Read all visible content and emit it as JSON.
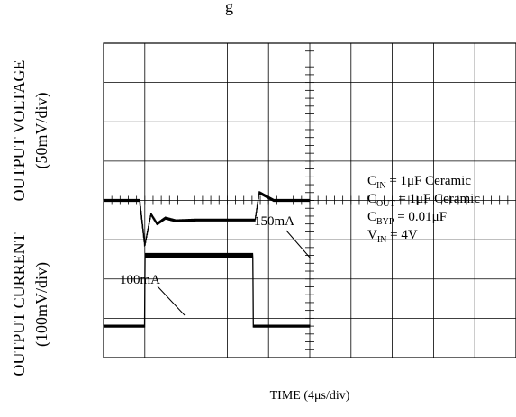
{
  "chart_data": {
    "type": "line",
    "title_fragment": "g",
    "ylabel_voltage": "OUTPUT VOLTAGE",
    "ylabel_voltage_unit": "(50mV/div)",
    "ylabel_current": "OUTPUT CURRENT",
    "ylabel_current_unit": "(100mV/div)",
    "xlabel": "TIME (4μs/div)",
    "grid": {
      "divisions_x": 10,
      "divisions_y": 8,
      "grid": "on"
    },
    "x_unit": "μs",
    "x_per_div": 4,
    "series": [
      {
        "trace": "voltage",
        "x": [
          0,
          3.5,
          4.0,
          4.6,
          5.2,
          6.0,
          7.0,
          9.0,
          13.0,
          14.7,
          15.1,
          16.5,
          20.0
        ],
        "y": [
          0,
          0,
          -1.15,
          -0.35,
          -0.6,
          -0.45,
          -0.52,
          -0.5,
          -0.5,
          -0.5,
          0.2,
          0.0,
          0.0
        ]
      },
      {
        "trace": "current",
        "x": [
          0,
          3.98,
          4.02,
          14.48,
          14.52,
          20.0
        ],
        "y": [
          -3.2,
          -3.2,
          -1.4,
          -1.4,
          -3.2,
          -3.2
        ]
      }
    ],
    "annotations": [
      {
        "text": "100mA"
      },
      {
        "text": "150mA"
      }
    ],
    "legend": {
      "lines": [
        {
          "base": "C",
          "sub": "IN",
          "rest": " = 1μF Ceramic"
        },
        {
          "base": "C",
          "sub": "OUT",
          "rest": " = 1μF Ceramic"
        },
        {
          "base": "C",
          "sub": "BYP",
          "rest": " = 0.01μF"
        },
        {
          "base": "V",
          "sub": "IN",
          "rest": " = 4V"
        }
      ],
      "placement": "right-center"
    }
  }
}
